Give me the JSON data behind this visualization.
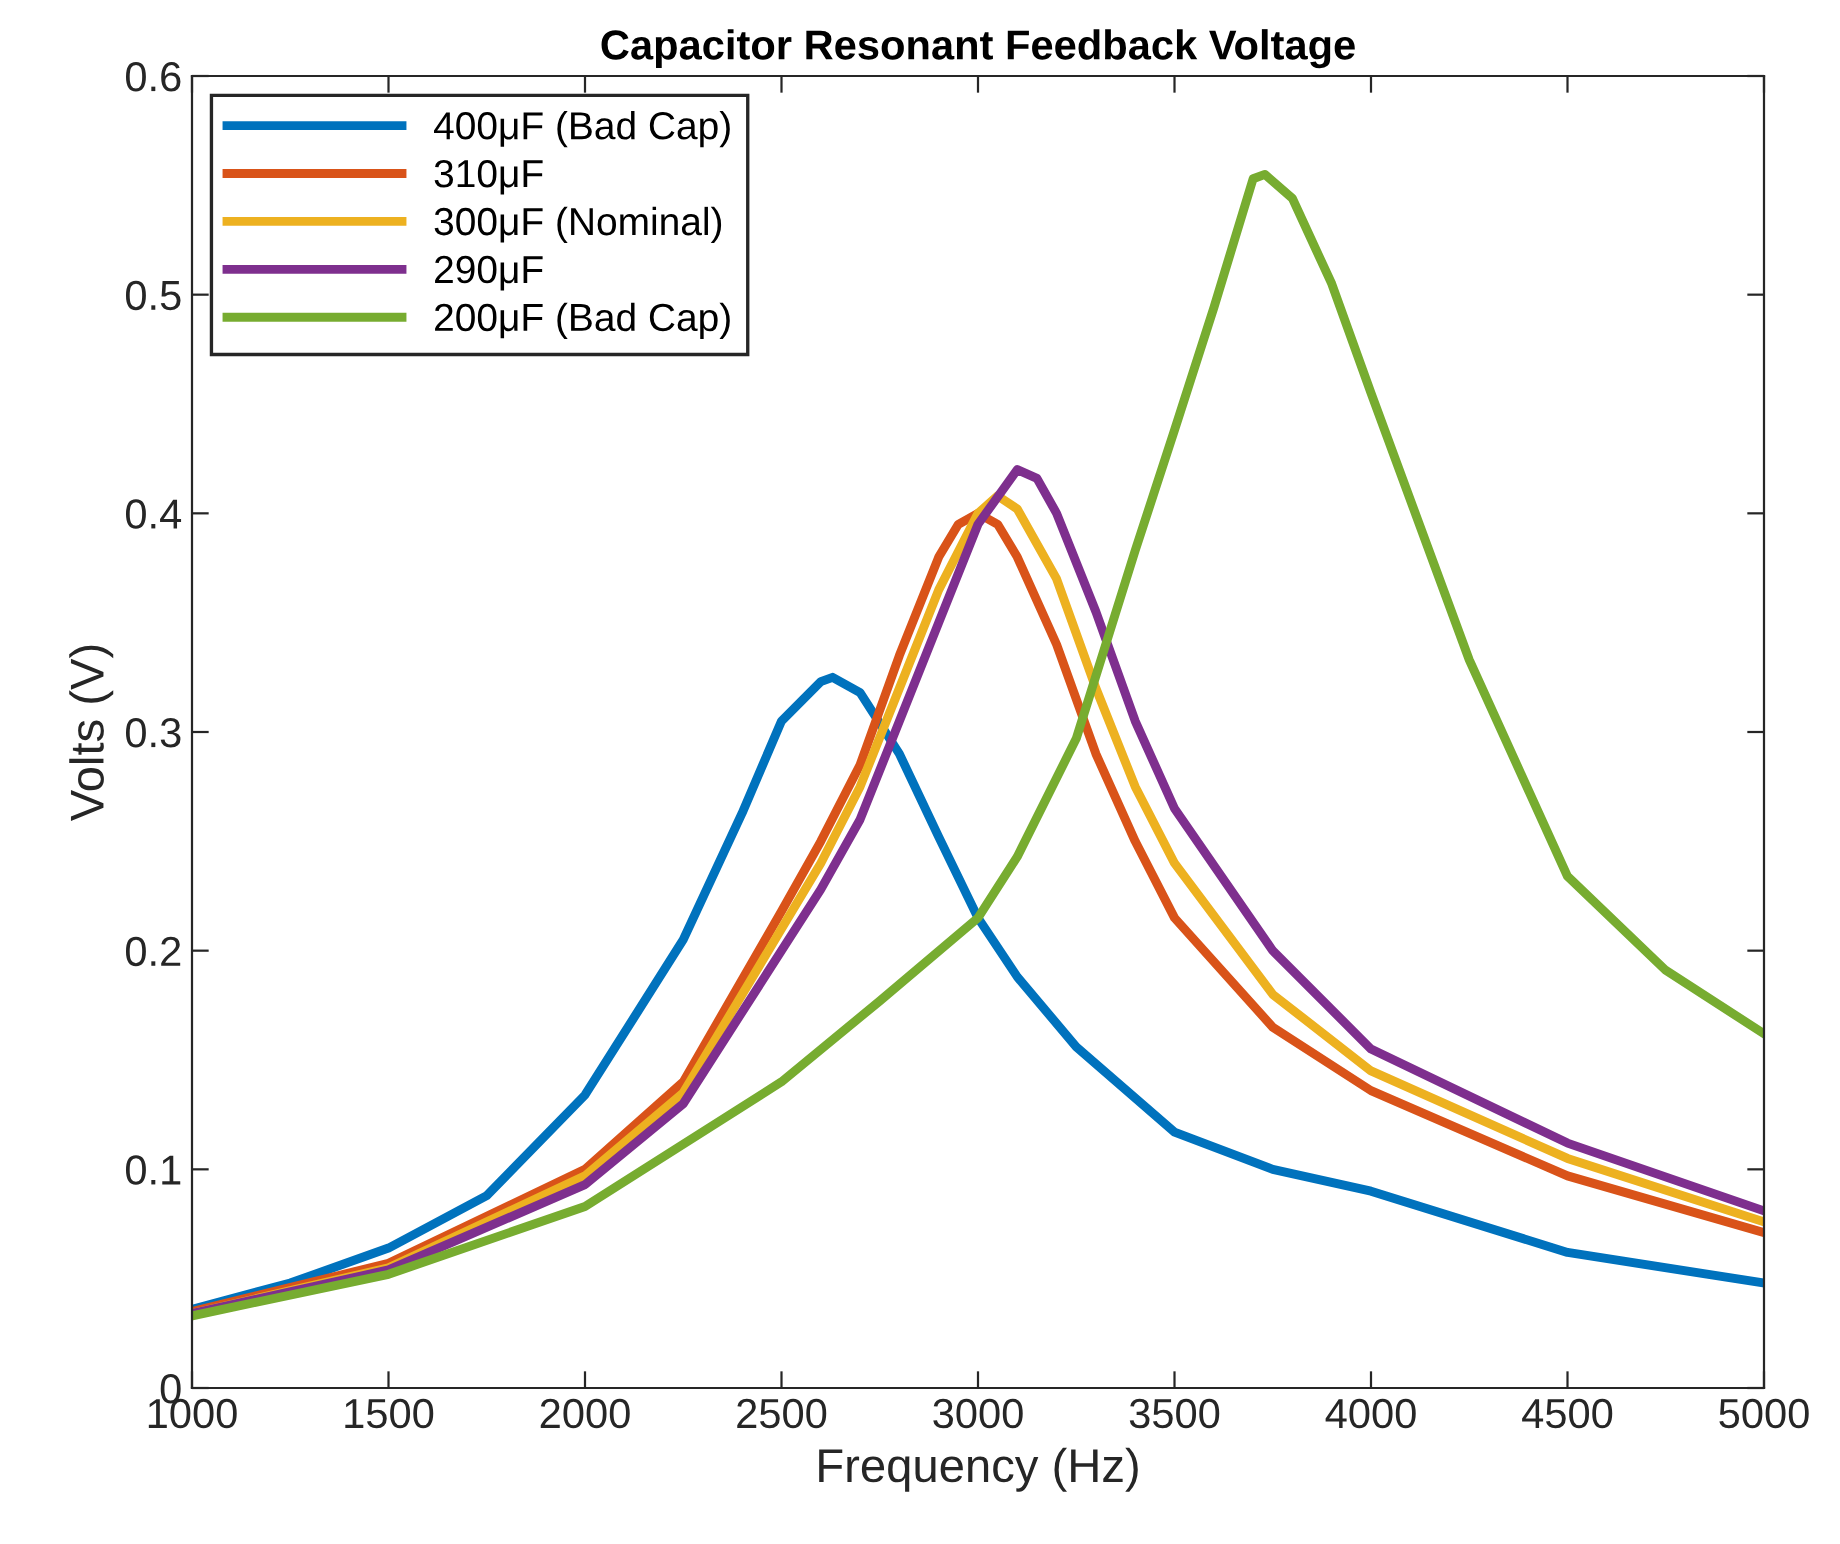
{
  "chart_data": {
    "type": "line",
    "title": "Capacitor Resonant Feedback Voltage",
    "xlabel": "Frequency (Hz)",
    "ylabel": "Volts (V)",
    "xlim": [
      1000,
      5000
    ],
    "ylim": [
      0,
      0.6
    ],
    "xticks": [
      1000,
      1500,
      2000,
      2500,
      3000,
      3500,
      4000,
      4500,
      5000
    ],
    "yticks": [
      0,
      0.1,
      0.2,
      0.3,
      0.4,
      0.5,
      0.6
    ],
    "grid": false,
    "legend": "top left",
    "marker": "none",
    "line_style": "solid",
    "series": [
      {
        "name": "400μF (Bad Cap)",
        "color": "#0072bd",
        "x": [
          1000,
          1250,
          1500,
          1750,
          2000,
          2250,
          2400,
          2500,
          2600,
          2630,
          2700,
          2800,
          2900,
          3000,
          3100,
          3250,
          3500,
          3750,
          4000,
          4500,
          5000
        ],
        "values": [
          0.036,
          0.048,
          0.064,
          0.088,
          0.134,
          0.205,
          0.263,
          0.305,
          0.323,
          0.325,
          0.318,
          0.29,
          0.252,
          0.215,
          0.188,
          0.156,
          0.117,
          0.1,
          0.09,
          0.062,
          0.048
        ]
      },
      {
        "name": "310μF",
        "color": "#d95319",
        "x": [
          1000,
          1500,
          2000,
          2250,
          2500,
          2600,
          2700,
          2800,
          2900,
          2950,
          3000,
          3050,
          3100,
          3200,
          3300,
          3400,
          3500,
          3750,
          4000,
          4500,
          5000
        ],
        "values": [
          0.035,
          0.057,
          0.1,
          0.14,
          0.218,
          0.25,
          0.285,
          0.335,
          0.38,
          0.395,
          0.4,
          0.395,
          0.38,
          0.34,
          0.29,
          0.25,
          0.215,
          0.165,
          0.136,
          0.097,
          0.071
        ]
      },
      {
        "name": "300μF (Nominal)",
        "color": "#edb120",
        "x": [
          1000,
          1500,
          2000,
          2250,
          2500,
          2600,
          2700,
          2800,
          2900,
          3000,
          3050,
          3100,
          3200,
          3300,
          3400,
          3500,
          3750,
          4000,
          4500,
          5000
        ],
        "values": [
          0.034,
          0.055,
          0.097,
          0.135,
          0.21,
          0.24,
          0.275,
          0.32,
          0.365,
          0.4,
          0.408,
          0.402,
          0.37,
          0.32,
          0.275,
          0.24,
          0.18,
          0.145,
          0.105,
          0.076
        ]
      },
      {
        "name": "290μF",
        "color": "#7e2f8e",
        "x": [
          1000,
          1500,
          2000,
          2250,
          2500,
          2600,
          2700,
          2800,
          2900,
          3000,
          3100,
          3150,
          3200,
          3300,
          3400,
          3500,
          3750,
          4000,
          4500,
          5000
        ],
        "values": [
          0.034,
          0.054,
          0.093,
          0.13,
          0.2,
          0.228,
          0.26,
          0.305,
          0.35,
          0.395,
          0.42,
          0.416,
          0.4,
          0.355,
          0.305,
          0.265,
          0.2,
          0.155,
          0.112,
          0.081
        ]
      },
      {
        "name": "200μF (Bad Cap)",
        "color": "#77ac30",
        "x": [
          1000,
          1500,
          2000,
          2500,
          2750,
          3000,
          3100,
          3250,
          3400,
          3500,
          3600,
          3700,
          3730,
          3800,
          3900,
          4000,
          4250,
          4500,
          4750,
          5000
        ],
        "values": [
          0.033,
          0.052,
          0.083,
          0.14,
          0.177,
          0.215,
          0.243,
          0.297,
          0.383,
          0.438,
          0.494,
          0.553,
          0.555,
          0.544,
          0.505,
          0.455,
          0.333,
          0.234,
          0.191,
          0.162
        ]
      }
    ]
  }
}
